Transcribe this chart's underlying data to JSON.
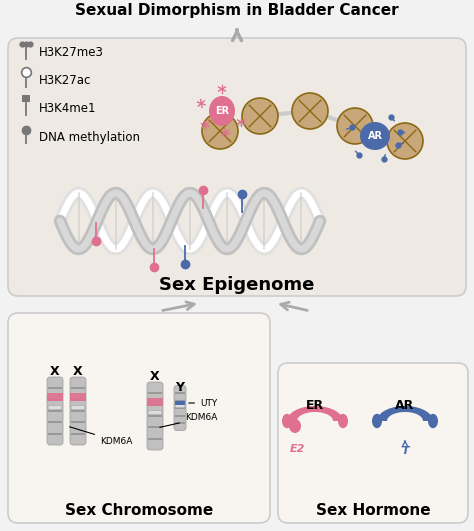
{
  "bg_color": "#f2f2f2",
  "box_bg": "#f8f5f0",
  "epi_bg": "#eeeae3",
  "box_ec": "#cccccc",
  "pink": "#e07090",
  "blue": "#4a6aaa",
  "gray_chr": "#c0c0c0",
  "tan": "#c8a87a",
  "tan_dark": "#8b6914",
  "title_bottom": "Sexual Dimorphism in Bladder Cancer",
  "title_sex_chr": "Sex Chromosome",
  "title_sex_hor": "Sex Hormone",
  "title_epi": "Sex Epigenome",
  "legend_items": [
    "DNA methylation",
    "H3K4me1",
    "H3K27ac",
    "H3K27me3"
  ],
  "arrow_color": "#aaaaaa",
  "fig_w": 4.74,
  "fig_h": 5.31,
  "dpi": 100
}
